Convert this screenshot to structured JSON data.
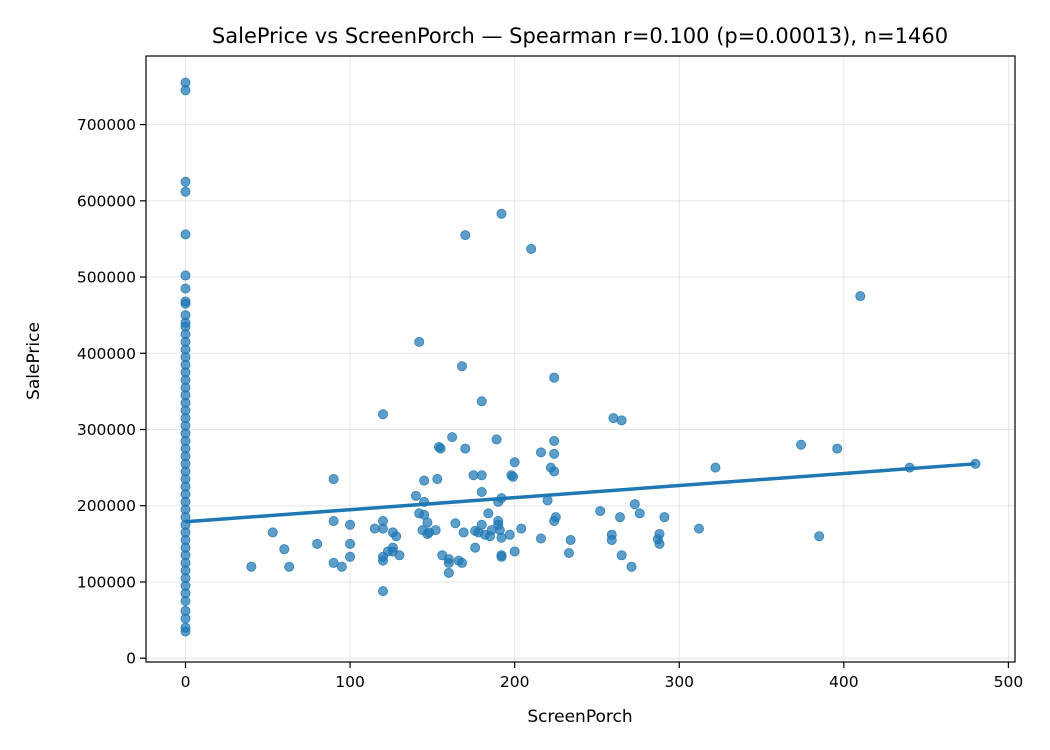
{
  "chart_data": {
    "type": "scatter",
    "title": "SalePrice vs ScreenPorch — Spearman r=0.100 (p=0.00013), n=1460",
    "xlabel": "ScreenPorch",
    "ylabel": "SalePrice",
    "xlim": [
      -24,
      504
    ],
    "ylim": [
      -5000,
      790000
    ],
    "xticks": [
      "0",
      "100",
      "200",
      "300",
      "400",
      "500"
    ],
    "yticks": [
      "0",
      "100000",
      "200000",
      "300000",
      "400000",
      "500000",
      "600000",
      "700000"
    ],
    "grid": true,
    "legend": "none",
    "colors": {
      "points": "#1f77b4",
      "fit": "#1f77b4"
    },
    "fit_line": {
      "x": [
        0,
        480
      ],
      "y": [
        179000,
        255000
      ]
    },
    "series": [
      {
        "points": [
          [
            0,
            755000
          ],
          [
            0,
            745000
          ],
          [
            0,
            625000
          ],
          [
            0,
            612000
          ],
          [
            0,
            556000
          ],
          [
            0,
            502000
          ],
          [
            0,
            485000
          ],
          [
            0,
            468000
          ],
          [
            0,
            465000
          ],
          [
            0,
            450000
          ],
          [
            0,
            440000
          ],
          [
            0,
            435000
          ],
          [
            0,
            425000
          ],
          [
            0,
            415000
          ],
          [
            0,
            405000
          ],
          [
            0,
            395000
          ],
          [
            0,
            385000
          ],
          [
            0,
            375000
          ],
          [
            0,
            365000
          ],
          [
            0,
            355000
          ],
          [
            0,
            345000
          ],
          [
            0,
            335000
          ],
          [
            0,
            325000
          ],
          [
            0,
            315000
          ],
          [
            0,
            305000
          ],
          [
            0,
            295000
          ],
          [
            0,
            285000
          ],
          [
            0,
            275000
          ],
          [
            0,
            265000
          ],
          [
            0,
            255000
          ],
          [
            0,
            245000
          ],
          [
            0,
            235000
          ],
          [
            0,
            225000
          ],
          [
            0,
            215000
          ],
          [
            0,
            205000
          ],
          [
            0,
            195000
          ],
          [
            0,
            185000
          ],
          [
            0,
            175000
          ],
          [
            0,
            165000
          ],
          [
            0,
            155000
          ],
          [
            0,
            145000
          ],
          [
            0,
            135000
          ],
          [
            0,
            125000
          ],
          [
            0,
            115000
          ],
          [
            0,
            105000
          ],
          [
            0,
            95000
          ],
          [
            0,
            85000
          ],
          [
            0,
            75000
          ],
          [
            0,
            62000
          ],
          [
            0,
            52000
          ],
          [
            0,
            40000
          ],
          [
            0,
            35000
          ],
          [
            40,
            120000
          ],
          [
            53,
            165000
          ],
          [
            60,
            143000
          ],
          [
            63,
            120000
          ],
          [
            80,
            150000
          ],
          [
            90,
            235000
          ],
          [
            90,
            180000
          ],
          [
            90,
            125000
          ],
          [
            95,
            120000
          ],
          [
            100,
            175000
          ],
          [
            100,
            150000
          ],
          [
            100,
            133000
          ],
          [
            115,
            170000
          ],
          [
            120,
            320000
          ],
          [
            120,
            180000
          ],
          [
            120,
            170000
          ],
          [
            120,
            133000
          ],
          [
            120,
            128000
          ],
          [
            120,
            88000
          ],
          [
            123,
            140000
          ],
          [
            126,
            165000
          ],
          [
            126,
            145000
          ],
          [
            126,
            140000
          ],
          [
            128,
            160000
          ],
          [
            130,
            135000
          ],
          [
            140,
            213000
          ],
          [
            142,
            415000
          ],
          [
            142,
            190000
          ],
          [
            144,
            168000
          ],
          [
            145,
            205000
          ],
          [
            145,
            188000
          ],
          [
            145,
            233000
          ],
          [
            147,
            178000
          ],
          [
            147,
            163000
          ],
          [
            148,
            165000
          ],
          [
            152,
            168000
          ],
          [
            153,
            235000
          ],
          [
            154,
            277000
          ],
          [
            155,
            275000
          ],
          [
            156,
            135000
          ],
          [
            160,
            130000
          ],
          [
            160,
            125000
          ],
          [
            160,
            112000
          ],
          [
            162,
            290000
          ],
          [
            164,
            177000
          ],
          [
            166,
            128000
          ],
          [
            168,
            383000
          ],
          [
            168,
            125000
          ],
          [
            169,
            165000
          ],
          [
            170,
            555000
          ],
          [
            170,
            275000
          ],
          [
            175,
            240000
          ],
          [
            176,
            167000
          ],
          [
            176,
            145000
          ],
          [
            178,
            165000
          ],
          [
            180,
            337000
          ],
          [
            180,
            218000
          ],
          [
            180,
            175000
          ],
          [
            180,
            240000
          ],
          [
            182,
            162000
          ],
          [
            184,
            190000
          ],
          [
            185,
            160000
          ],
          [
            186,
            168000
          ],
          [
            189,
            287000
          ],
          [
            190,
            205000
          ],
          [
            190,
            180000
          ],
          [
            190,
            175000
          ],
          [
            191,
            168000
          ],
          [
            192,
            583000
          ],
          [
            192,
            210000
          ],
          [
            192,
            158000
          ],
          [
            192,
            135000
          ],
          [
            192,
            133000
          ],
          [
            197,
            162000
          ],
          [
            198,
            240000
          ],
          [
            199,
            238000
          ],
          [
            200,
            257000
          ],
          [
            200,
            140000
          ],
          [
            204,
            170000
          ],
          [
            210,
            537000
          ],
          [
            216,
            270000
          ],
          [
            216,
            157000
          ],
          [
            220,
            207000
          ],
          [
            222,
            250000
          ],
          [
            224,
            368000
          ],
          [
            224,
            285000
          ],
          [
            224,
            268000
          ],
          [
            224,
            245000
          ],
          [
            224,
            180000
          ],
          [
            225,
            185000
          ],
          [
            233,
            138000
          ],
          [
            234,
            155000
          ],
          [
            252,
            193000
          ],
          [
            259,
            162000
          ],
          [
            259,
            155000
          ],
          [
            260,
            315000
          ],
          [
            264,
            185000
          ],
          [
            265,
            312000
          ],
          [
            265,
            135000
          ],
          [
            271,
            120000
          ],
          [
            273,
            202000
          ],
          [
            276,
            190000
          ],
          [
            287,
            156000
          ],
          [
            288,
            163000
          ],
          [
            288,
            150000
          ],
          [
            291,
            185000
          ],
          [
            312,
            170000
          ],
          [
            322,
            250000
          ],
          [
            374,
            280000
          ],
          [
            385,
            160000
          ],
          [
            396,
            275000
          ],
          [
            410,
            475000
          ],
          [
            440,
            250000
          ],
          [
            480,
            255000
          ]
        ]
      }
    ]
  }
}
